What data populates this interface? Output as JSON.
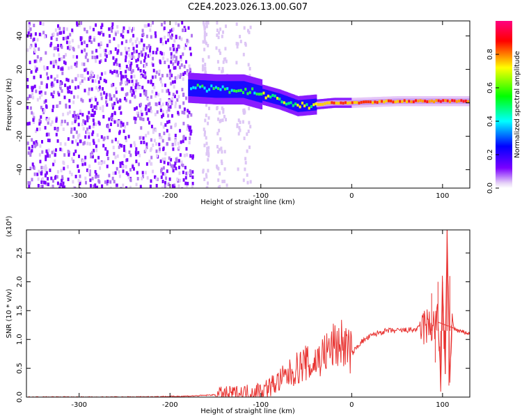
{
  "title": "C2E4.2023.026.13.00.G07",
  "chart_data": [
    {
      "type": "heatmap",
      "xlabel": "Height of straight line (km)",
      "ylabel": "Frequency (Hz)",
      "xlim": [
        -358,
        130
      ],
      "ylim": [
        -51,
        49
      ],
      "xticks": [
        -300,
        -200,
        -100,
        0,
        100
      ],
      "yticks": [
        -40,
        -20,
        0,
        20,
        40
      ],
      "colorbar": {
        "label": "Normalized spectral amplitude",
        "range": [
          0.0,
          1.0
        ],
        "ticks": [
          "0.0",
          "0.2",
          "0.4",
          "0.6",
          "0.8"
        ],
        "colormap": [
          "#e6d3f7",
          "#7b00ff",
          "#0000ff",
          "#00ffff",
          "#00ff00",
          "#ffff00",
          "#ff0000",
          "#ff0080"
        ]
      },
      "description_features": {
        "noise_region_km": [
          -358,
          -175
        ],
        "signal_trace_points": [
          {
            "x": -180,
            "y": 9
          },
          {
            "x": -150,
            "y": 8
          },
          {
            "x": -120,
            "y": 8
          },
          {
            "x": -100,
            "y": 5
          },
          {
            "x": -80,
            "y": 2
          },
          {
            "x": -60,
            "y": -2
          },
          {
            "x": -40,
            "y": -1
          },
          {
            "x": -20,
            "y": 0
          },
          {
            "x": 0,
            "y": 0
          },
          {
            "x": 50,
            "y": 1
          },
          {
            "x": 100,
            "y": 1
          },
          {
            "x": 130,
            "y": 1
          }
        ]
      }
    },
    {
      "type": "line",
      "xlabel": "Height of straight line (km)",
      "ylabel": "SNR (10 * v/v)",
      "y_multiplier": "(x10⁴)",
      "xlim": [
        -358,
        130
      ],
      "ylim": [
        0,
        2.9
      ],
      "xticks": [
        -300,
        -200,
        -100,
        0,
        100
      ],
      "yticks": [
        "0.0",
        "0.5",
        "1.0",
        "1.5",
        "2.0",
        "2.5"
      ],
      "color": "#e8312f",
      "series": [
        {
          "x": [
            -358,
            -300,
            -250,
            -200,
            -175,
            -150,
            -130,
            -115,
            -100,
            -90,
            -80,
            -70,
            -60,
            -50,
            -45,
            -40,
            -30,
            -20,
            -10,
            0,
            10,
            20,
            30,
            40,
            50,
            60,
            70,
            75,
            80,
            85,
            90,
            95,
            98,
            100,
            103,
            105,
            108,
            110,
            115,
            120,
            125,
            130
          ],
          "values": [
            0.0,
            0.0,
            0.0,
            0.01,
            0.02,
            0.04,
            0.06,
            0.08,
            0.12,
            0.18,
            0.28,
            0.38,
            0.5,
            0.6,
            0.5,
            0.62,
            0.75,
            0.88,
            0.95,
            0.75,
            0.95,
            1.05,
            1.12,
            1.15,
            1.15,
            1.16,
            1.17,
            1.2,
            1.22,
            1.22,
            1.25,
            1.3,
            0.35,
            2.0,
            0.4,
            2.9,
            0.25,
            1.25,
            1.15,
            1.13,
            1.12,
            1.1
          ]
        }
      ]
    }
  ]
}
